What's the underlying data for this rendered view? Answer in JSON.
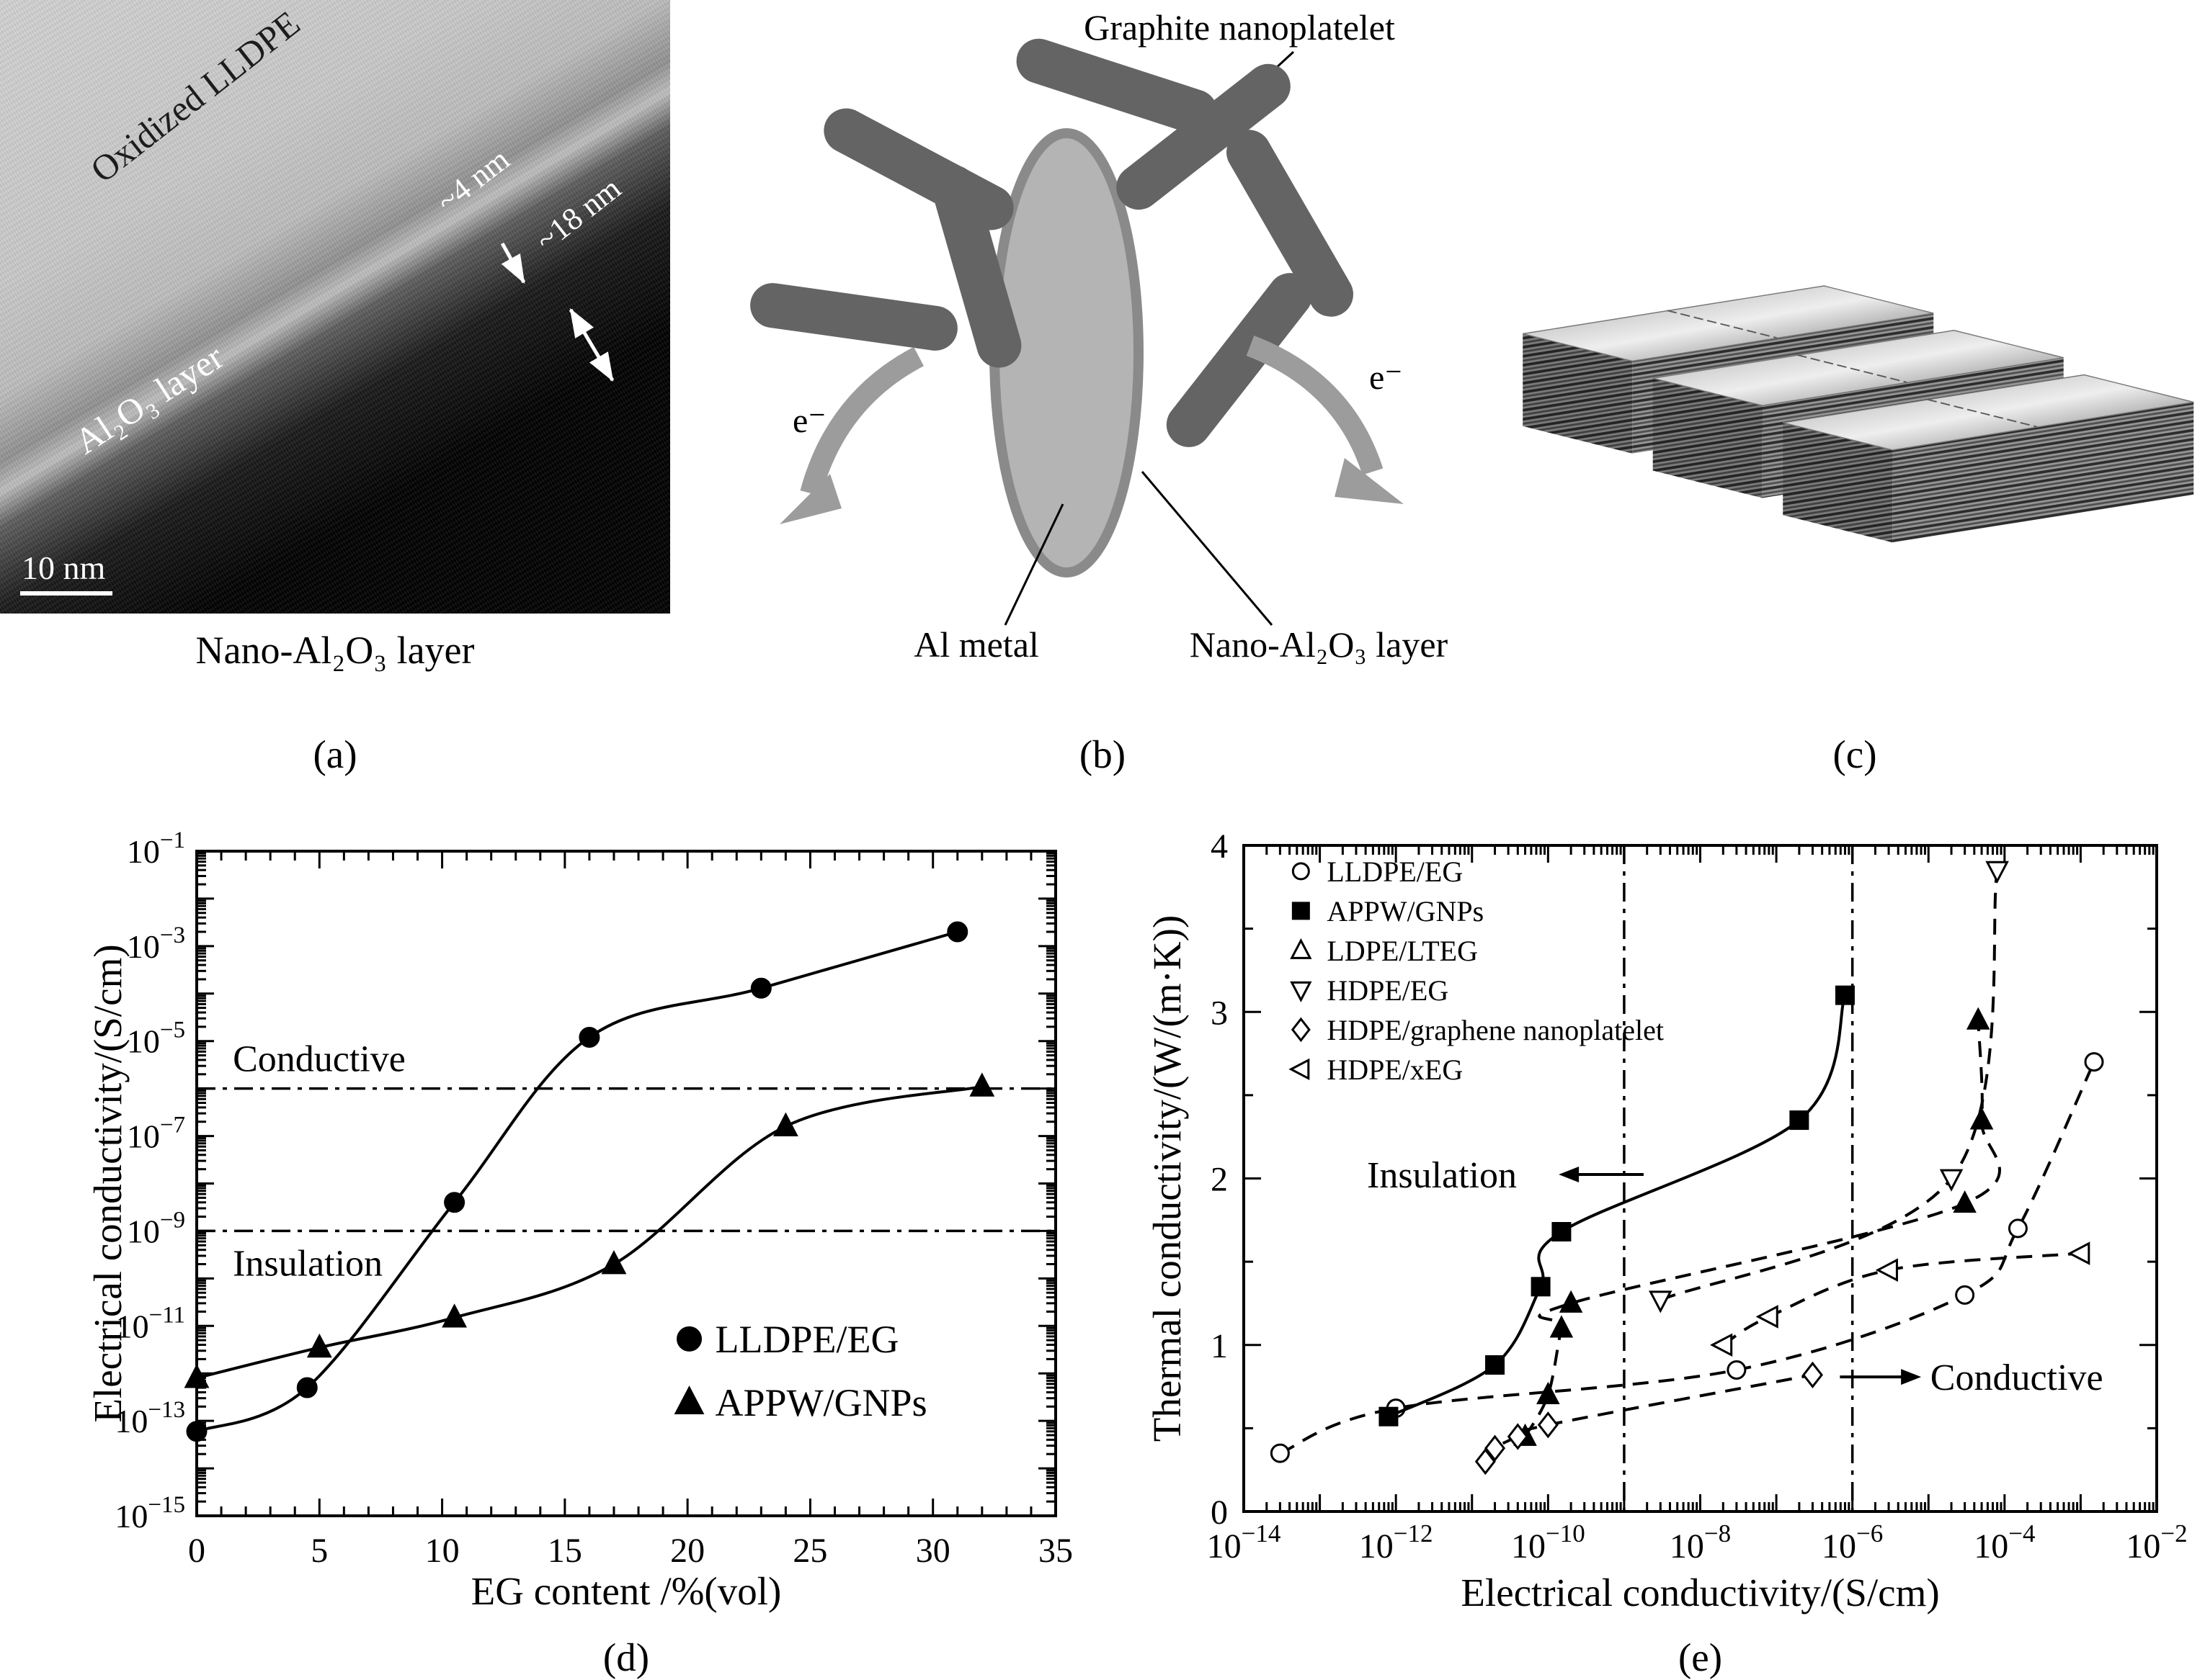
{
  "panel_a": {
    "label_oxidized_lldpe": "Oxidized LLDPE",
    "label_4nm": "~4 nm",
    "label_18nm": "~18 nm",
    "label_al2o3_layer": "Al₂O₃ layer",
    "scale_bar": "10 nm",
    "caption": "Nano-Al₂O₃ layer",
    "tag": "(a)"
  },
  "panel_b": {
    "label_graphite": "Graphite nanoplatelet",
    "label_al_metal": "Al metal",
    "label_nano_al2o3": "Nano-Al₂O₃ layer",
    "electron_left": "e⁻",
    "electron_right": "e⁻",
    "tag": "(b)"
  },
  "panel_c": {
    "tag": "(c)"
  },
  "chart_data": [
    {
      "id": "d",
      "type": "line",
      "tag": "(d)",
      "xlabel": "EG content /%(vol)",
      "ylabel": "Electrical conductivity/(S/cm)",
      "x_axis": {
        "min": 0,
        "max": 35,
        "major_ticks": [
          0,
          5,
          10,
          15,
          20,
          25,
          30,
          35
        ],
        "minor_step": 1
      },
      "y_axis": {
        "log": true,
        "min_exp": -15,
        "max_exp": -1,
        "label_step": 2
      },
      "ref_lines": [
        {
          "value": 1e-06,
          "label": "Conductive",
          "label_fx": 0.042,
          "label_offset": -24
        },
        {
          "value": 1e-09,
          "label": "Insulation",
          "label_fx": 0.042,
          "label_offset": 62
        }
      ],
      "series": [
        {
          "name": "LLDPE/EG",
          "marker": "circle",
          "filled": true,
          "line": "solid",
          "points": [
            [
              0,
              6e-14
            ],
            [
              4.5,
              5e-13
            ],
            [
              10.5,
              4e-09
            ],
            [
              16,
              1.2e-05
            ],
            [
              23,
              0.00013
            ],
            [
              31,
              0.002
            ]
          ]
        },
        {
          "name": "APPW/GNPs",
          "marker": "triangle-up",
          "filled": true,
          "line": "solid",
          "points": [
            [
              0,
              8e-13
            ],
            [
              5,
              3.5e-12
            ],
            [
              10.5,
              1.5e-11
            ],
            [
              17,
              2e-10
            ],
            [
              24,
              1.6e-07
            ],
            [
              32,
              1.1e-06
            ]
          ]
        }
      ],
      "legend": {
        "fx": 0.56,
        "fy": 0.71
      }
    },
    {
      "id": "e",
      "type": "scatter",
      "tag": "(e)",
      "xlabel": "Electrical conductivity/(S/cm)",
      "ylabel": "Thermal conductivity/(W/(m·K))",
      "x_axis": {
        "log": true,
        "min_exp": -14,
        "max_exp": -2,
        "label_step": 2
      },
      "y_axis": {
        "min": 0,
        "max": 4,
        "major_ticks": [
          0,
          1,
          2,
          3,
          4
        ],
        "minor_step": 0.5
      },
      "v_lines": [
        1e-09,
        1e-06
      ],
      "series": [
        {
          "name": "LLDPE/EG",
          "marker": "circle",
          "filled": false,
          "line": "dashed",
          "points": [
            [
              3e-14,
              0.35
            ],
            [
              1e-12,
              0.62
            ],
            [
              3e-08,
              0.85
            ],
            [
              3e-05,
              1.3
            ],
            [
              0.00015,
              1.7
            ],
            [
              0.0015,
              2.7
            ]
          ]
        },
        {
          "name": "APPW/GNPs",
          "marker": "square",
          "filled": true,
          "line": "solid",
          "points": [
            [
              8e-13,
              0.57
            ],
            [
              2e-11,
              0.88
            ],
            [
              8e-11,
              1.35
            ],
            [
              1.5e-10,
              1.68
            ],
            [
              2e-07,
              2.35
            ],
            [
              8e-07,
              3.1
            ]
          ]
        },
        {
          "name": "LDPE/LTEG",
          "marker": "triangle-up",
          "filled": true,
          "legend_filled": false,
          "line": "dashed",
          "points": [
            [
              5e-11,
              0.45
            ],
            [
              1e-10,
              0.7
            ],
            [
              1.5e-10,
              1.1
            ],
            [
              2e-10,
              1.25
            ],
            [
              3e-05,
              1.85
            ],
            [
              5e-05,
              2.35
            ],
            [
              4.5e-05,
              2.95
            ]
          ]
        },
        {
          "name": "HDPE/EG",
          "marker": "triangle-down",
          "filled": false,
          "line": "dashed",
          "points": [
            [
              3e-09,
              1.27
            ],
            [
              2e-05,
              2.0
            ],
            [
              8e-05,
              3.85
            ]
          ]
        },
        {
          "name": "HDPE/graphene nanoplatelet",
          "marker": "diamond",
          "filled": false,
          "line": "dashed",
          "points": [
            [
              1.5e-11,
              0.3
            ],
            [
              2e-11,
              0.38
            ],
            [
              4e-11,
              0.45
            ],
            [
              1e-10,
              0.52
            ],
            [
              3e-07,
              0.82
            ]
          ]
        },
        {
          "name": "HDPE/xEG",
          "marker": "triangle-left",
          "filled": false,
          "line": "dashed",
          "points": [
            [
              2e-08,
              1.0
            ],
            [
              8e-08,
              1.17
            ],
            [
              3e-06,
              1.45
            ],
            [
              0.001,
              1.55
            ]
          ]
        }
      ],
      "legend": {
        "fx": 0.05,
        "fy": 0.015
      },
      "annotations": [
        {
          "text": "Insulation",
          "text_fx": 0.135,
          "text_fy": 0.494,
          "arrow_fx1": 0.345,
          "arrow_fx2": 0.438,
          "head": "left"
        },
        {
          "text": "Conductive",
          "text_fx": 0.752,
          "text_fy": 0.798,
          "arrow_fx1": 0.653,
          "arrow_fx2": 0.742,
          "head": "right"
        }
      ]
    }
  ]
}
